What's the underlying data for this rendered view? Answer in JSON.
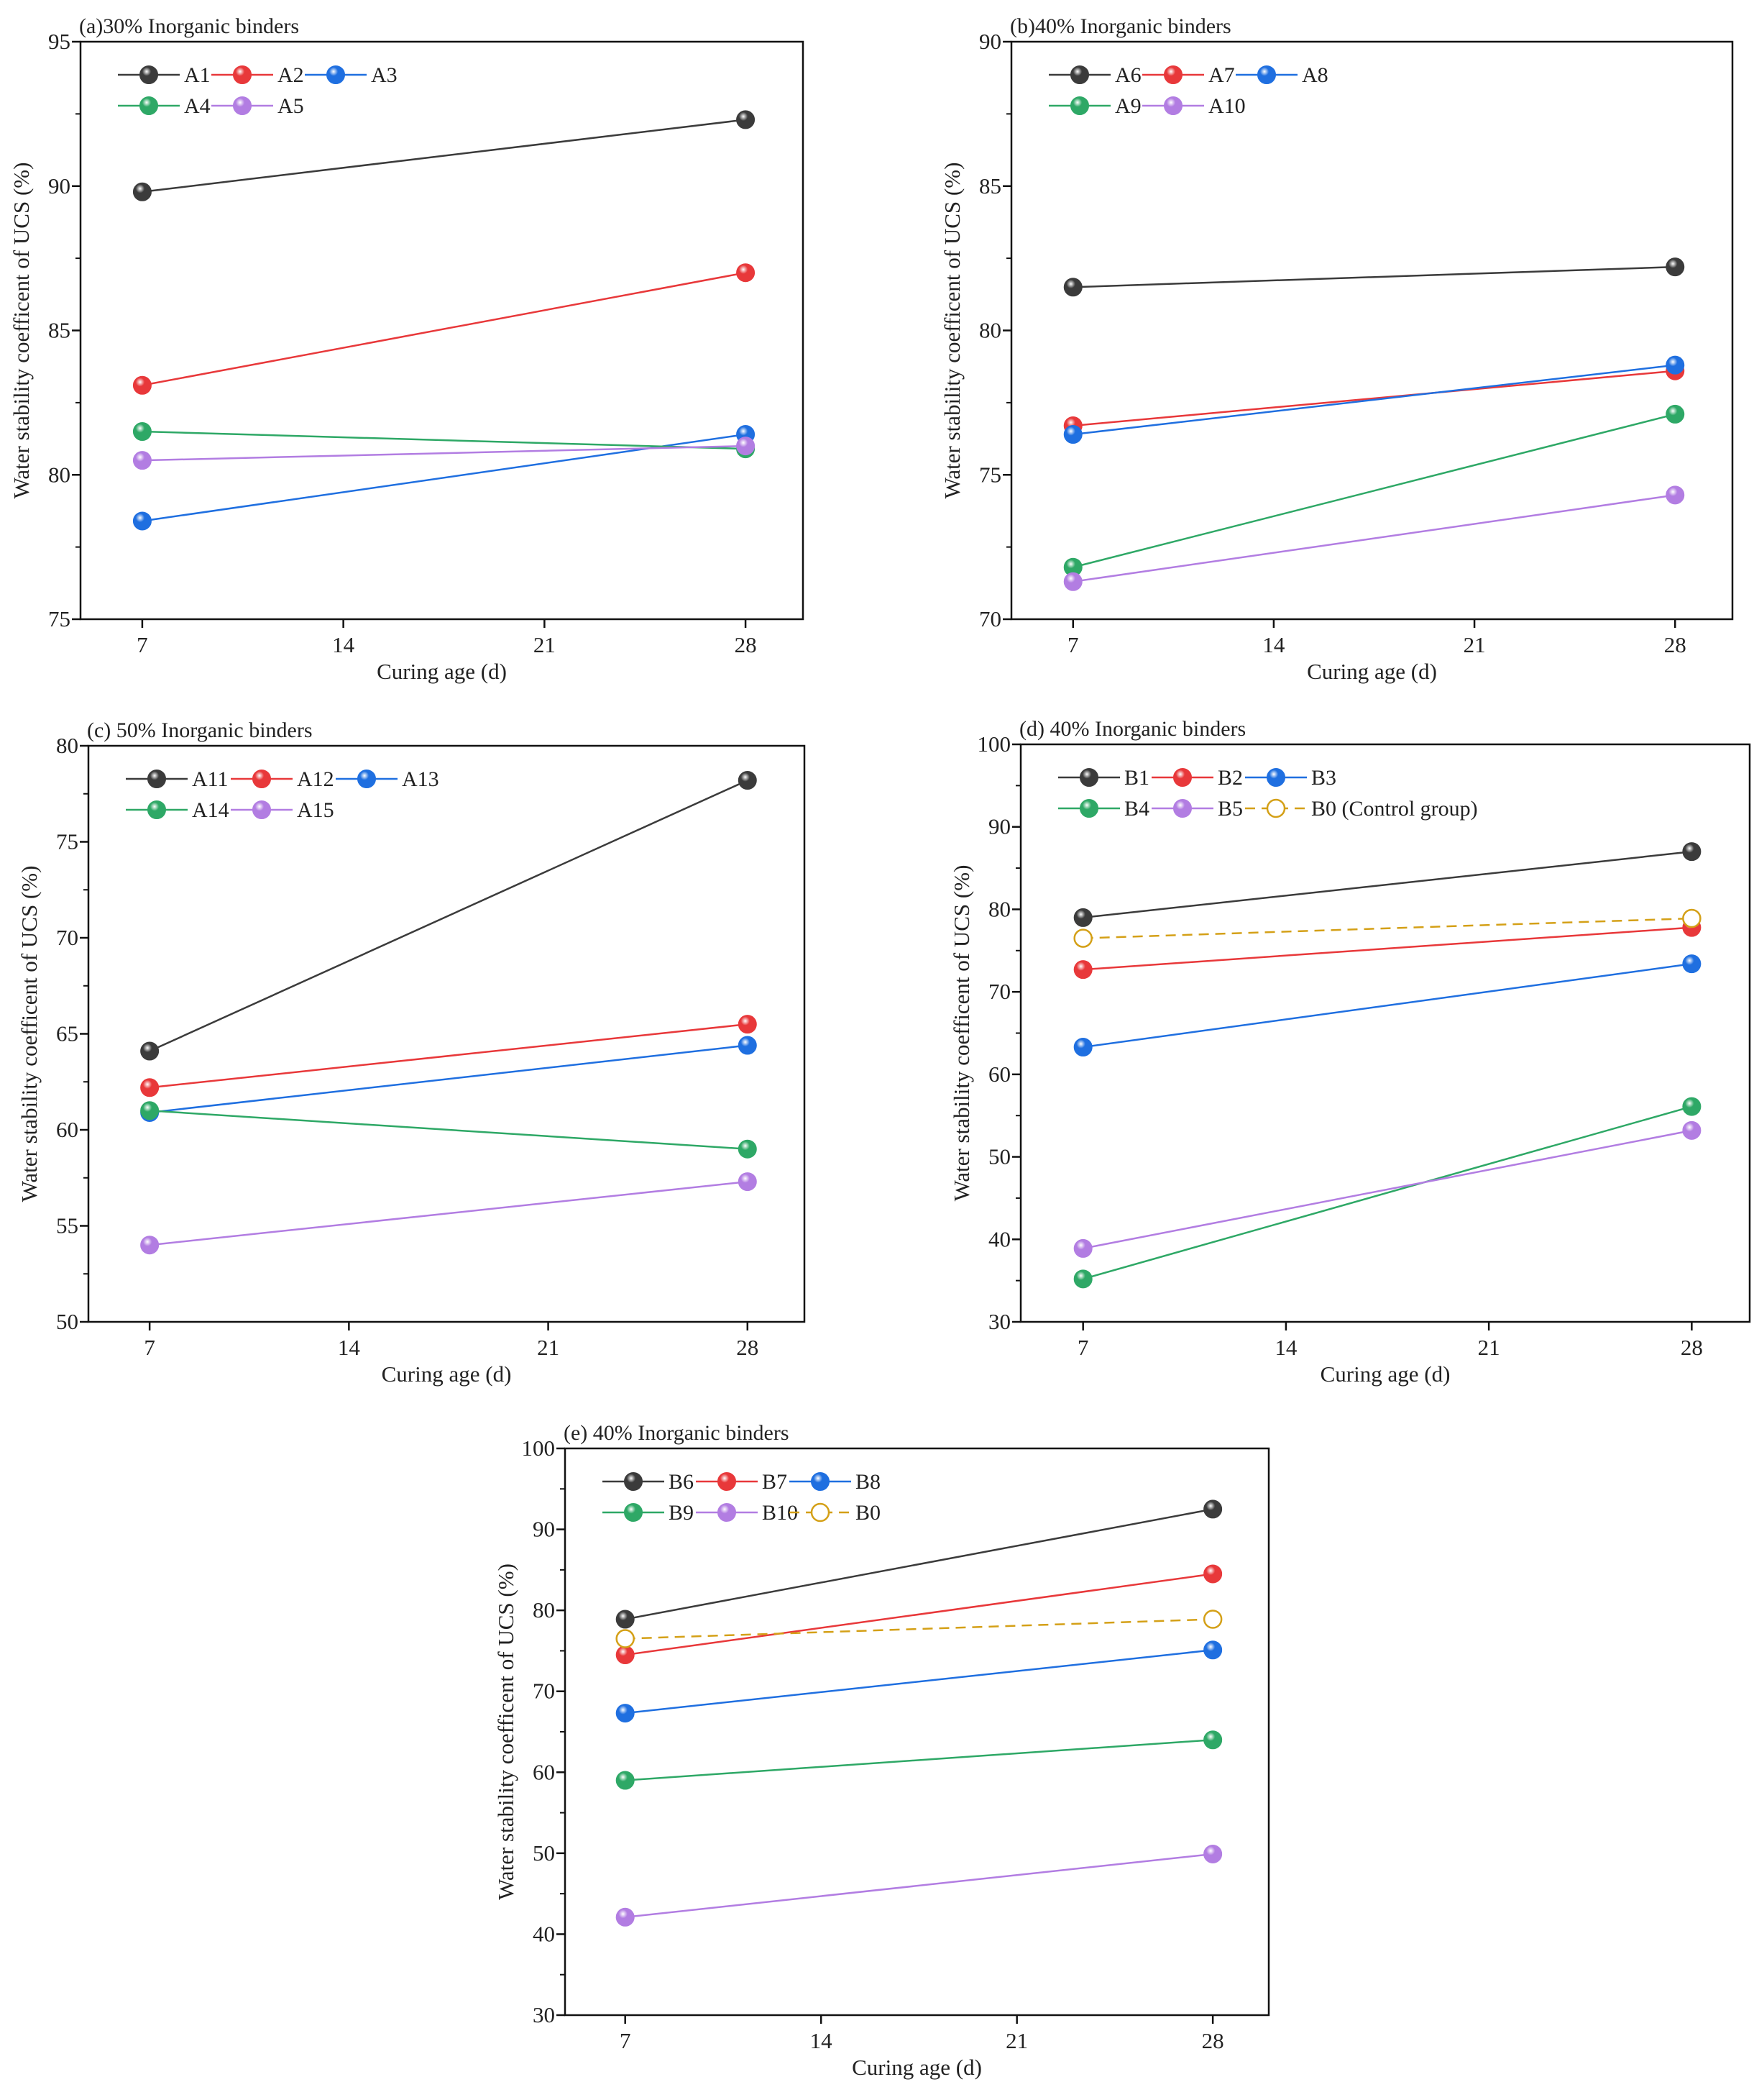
{
  "colors": {
    "black": "#3b3b3b",
    "red": "#e8383a",
    "blue": "#1f6fe0",
    "green": "#2ea866",
    "purple": "#b27de2",
    "gold": "#d4a017"
  },
  "chart_data": [
    {
      "type": "line",
      "title": "(a)30% Inorganic binders",
      "xlabel": "Curing age (d)",
      "ylabel": "Water stability coefficent of UCS (%)",
      "x": [
        7,
        28
      ],
      "xticks": [
        7,
        14,
        21,
        28
      ],
      "xlim": [
        4.85,
        30
      ],
      "ylim": [
        75,
        95
      ],
      "yticks": [
        75,
        80,
        85,
        90,
        95
      ],
      "grid": false,
      "legend": "top-left",
      "series": [
        {
          "name": "A1",
          "color": "black",
          "values": [
            89.8,
            92.3
          ]
        },
        {
          "name": "A2",
          "color": "red",
          "values": [
            83.1,
            87.0
          ]
        },
        {
          "name": "A3",
          "color": "blue",
          "values": [
            78.4,
            81.4
          ]
        },
        {
          "name": "A4",
          "color": "green",
          "values": [
            81.5,
            80.9
          ]
        },
        {
          "name": "A5",
          "color": "purple",
          "values": [
            80.5,
            81.0
          ]
        }
      ]
    },
    {
      "type": "line",
      "title": "(b)40% Inorganic binders",
      "xlabel": "Curing age (d)",
      "ylabel": "Water stability coefficent of UCS (%)",
      "x": [
        7,
        28
      ],
      "xticks": [
        7,
        14,
        21,
        28
      ],
      "xlim": [
        4.85,
        30
      ],
      "ylim": [
        70,
        90
      ],
      "yticks": [
        70,
        75,
        80,
        85,
        90
      ],
      "grid": false,
      "legend": "top-left",
      "series": [
        {
          "name": "A6",
          "color": "black",
          "values": [
            81.5,
            82.2
          ]
        },
        {
          "name": "A7",
          "color": "red",
          "values": [
            76.7,
            78.6
          ]
        },
        {
          "name": "A8",
          "color": "blue",
          "values": [
            76.4,
            78.8
          ]
        },
        {
          "name": "A9",
          "color": "green",
          "values": [
            71.8,
            77.1
          ]
        },
        {
          "name": "A10",
          "color": "purple",
          "values": [
            71.3,
            74.3
          ]
        }
      ]
    },
    {
      "type": "line",
      "title": "(c) 50% Inorganic binders",
      "xlabel": "Curing age (d)",
      "ylabel": "Water stability coefficent of UCS (%)",
      "x": [
        7,
        28
      ],
      "xticks": [
        7,
        14,
        21,
        28
      ],
      "xlim": [
        4.85,
        30
      ],
      "ylim": [
        50,
        80
      ],
      "yticks": [
        50,
        55,
        60,
        65,
        70,
        75,
        80
      ],
      "grid": false,
      "legend": "top-left",
      "series": [
        {
          "name": "A11",
          "color": "black",
          "values": [
            64.1,
            78.2
          ]
        },
        {
          "name": "A12",
          "color": "red",
          "values": [
            62.2,
            65.5
          ]
        },
        {
          "name": "A13",
          "color": "blue",
          "values": [
            60.9,
            64.4
          ]
        },
        {
          "name": "A14",
          "color": "green",
          "values": [
            61.0,
            59.0
          ]
        },
        {
          "name": "A15",
          "color": "purple",
          "values": [
            54.0,
            57.3
          ]
        }
      ]
    },
    {
      "type": "line",
      "title": "(d) 40% Inorganic binders",
      "xlabel": "Curing age (d)",
      "ylabel": "Water stability coefficent of UCS (%)",
      "x": [
        7,
        28
      ],
      "xticks": [
        7,
        14,
        21,
        28
      ],
      "xlim": [
        4.85,
        30
      ],
      "ylim": [
        30,
        100
      ],
      "yticks": [
        30,
        40,
        50,
        60,
        70,
        80,
        90,
        100
      ],
      "grid": false,
      "legend": "top-left",
      "series": [
        {
          "name": "B1",
          "color": "black",
          "values": [
            79.0,
            87.0
          ]
        },
        {
          "name": "B2",
          "color": "red",
          "values": [
            72.7,
            77.8
          ]
        },
        {
          "name": "B3",
          "color": "blue",
          "values": [
            63.3,
            73.4
          ]
        },
        {
          "name": "B4",
          "color": "green",
          "values": [
            35.2,
            56.1
          ]
        },
        {
          "name": "B5",
          "color": "purple",
          "values": [
            38.9,
            53.2
          ]
        },
        {
          "name": "B0 (Control group)",
          "color": "gold",
          "dashed": true,
          "values": [
            76.5,
            78.9
          ]
        }
      ]
    },
    {
      "type": "line",
      "title": "(e) 40% Inorganic binders",
      "xlabel": "Curing age (d)",
      "ylabel": "Water stability coefficent of UCS (%)",
      "x": [
        7,
        28
      ],
      "xticks": [
        7,
        14,
        21,
        28
      ],
      "xlim": [
        4.85,
        30
      ],
      "ylim": [
        30,
        100
      ],
      "yticks": [
        30,
        40,
        50,
        60,
        70,
        80,
        90,
        100
      ],
      "grid": false,
      "legend": "top-left",
      "series": [
        {
          "name": "B6",
          "color": "black",
          "values": [
            78.9,
            92.5
          ]
        },
        {
          "name": "B7",
          "color": "red",
          "values": [
            74.5,
            84.5
          ]
        },
        {
          "name": "B8",
          "color": "blue",
          "values": [
            67.3,
            75.1
          ]
        },
        {
          "name": "B9",
          "color": "green",
          "values": [
            59.0,
            64.0
          ]
        },
        {
          "name": "B10",
          "color": "purple",
          "values": [
            42.1,
            49.9
          ]
        },
        {
          "name": "B0",
          "color": "gold",
          "dashed": true,
          "values": [
            76.5,
            78.9
          ]
        }
      ]
    }
  ]
}
